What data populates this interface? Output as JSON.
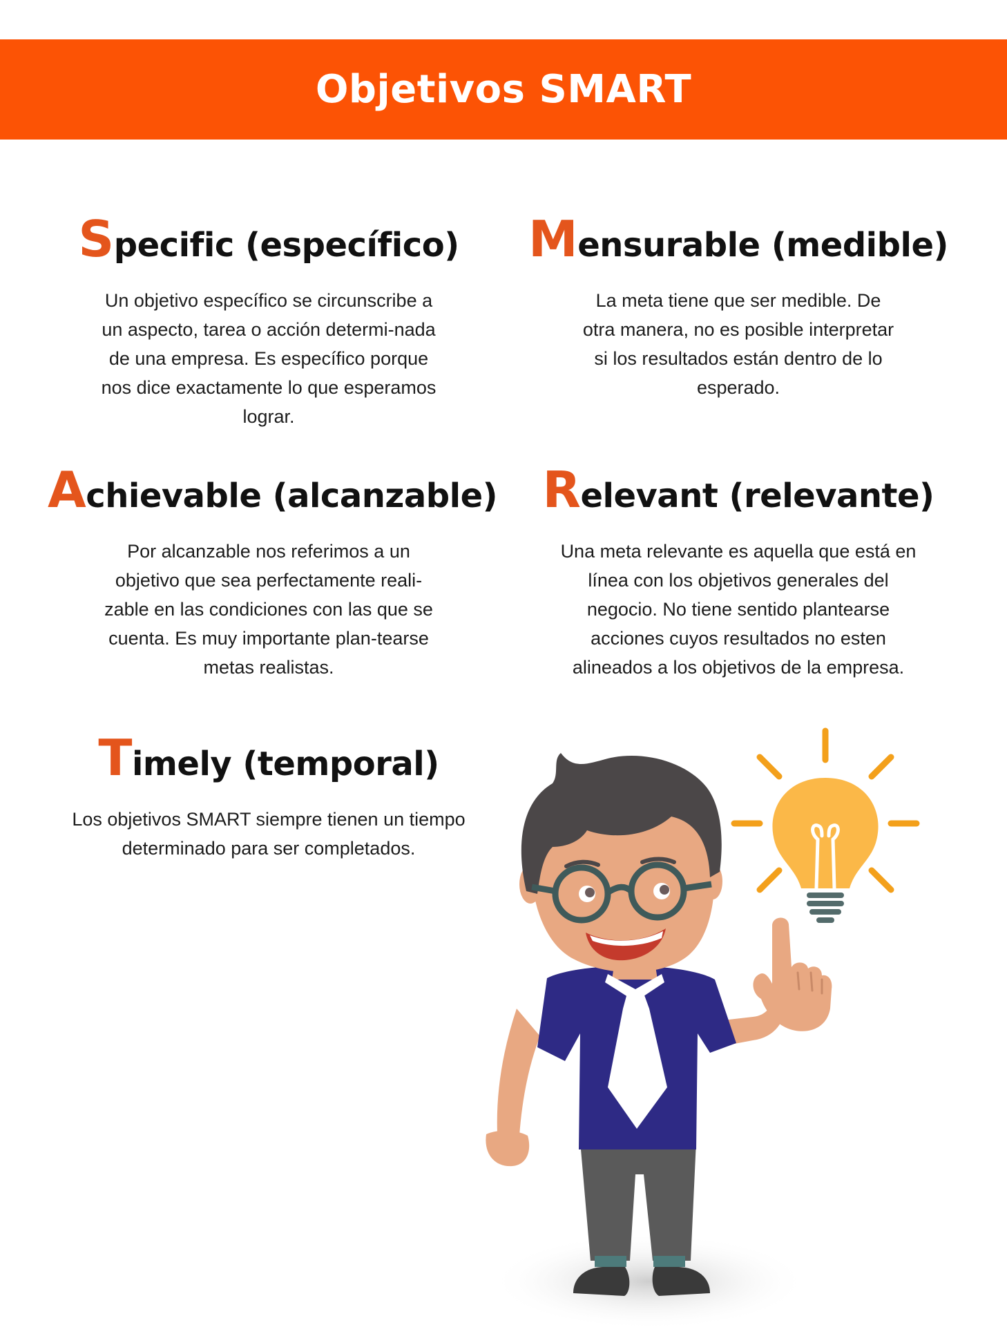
{
  "header": {
    "title": "Objetivos SMART"
  },
  "colors": {
    "banner": "#fc5305",
    "accent_letter": "#e4551c",
    "shirt": "#2e2a85",
    "bulb": "#fbb848",
    "rays": "#f3a01b",
    "skin": "#e8a882"
  },
  "sections": [
    {
      "initial": "S",
      "rest": "pecific (específico)",
      "body": "Un objetivo específico se circunscribe a un aspecto, tarea o acción determi-nada de una empresa. Es específico porque nos dice exactamente lo que esperamos lograr."
    },
    {
      "initial": "M",
      "rest": "ensurable (medible)",
      "body": "La meta tiene que ser medible. De otra manera, no es posible interpretar si los resultados están dentro de lo esperado."
    },
    {
      "initial": "A",
      "rest": "chievable (alcanzable)",
      "body": "Por alcanzable nos referimos a un objetivo que sea perfectamente reali-zable en las condiciones con las que se cuenta. Es muy importante plan-tearse metas realistas."
    },
    {
      "initial": "R",
      "rest": "elevant (relevante)",
      "body": "Una meta relevante es aquella que está en línea con los objetivos generales del negocio. No tiene sentido plantearse acciones cuyos resultados no esten alineados a los objetivos de la empresa."
    },
    {
      "initial": "T",
      "rest": "imely (temporal)",
      "body": "Los objetivos SMART siempre tienen un tiempo determinado para ser completados."
    }
  ],
  "illustration": {
    "icons": [
      "man-with-glasses-icon",
      "light-bulb-icon"
    ]
  }
}
